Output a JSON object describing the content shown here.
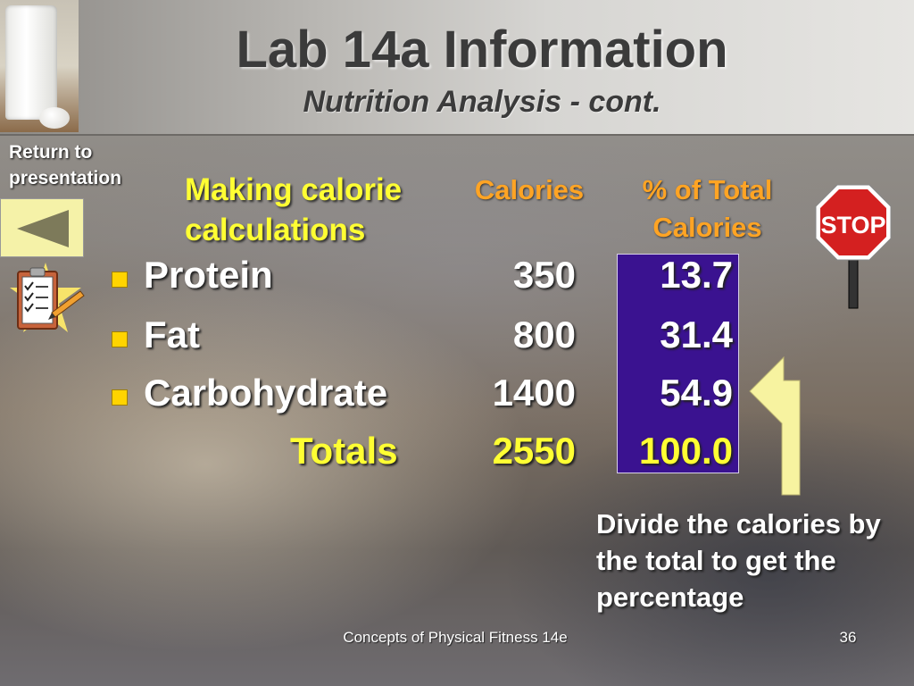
{
  "slide": {
    "title": "Lab 14a Information",
    "subtitle": "Nutrition Analysis - cont.",
    "return_label": "Return to presentation",
    "heading": "Making calorie calculations",
    "columns": {
      "calories": "Calories",
      "percent": "% of Total Calories"
    },
    "rows": [
      {
        "label": "Protein",
        "calories": "350",
        "percent": "13.7"
      },
      {
        "label": "Fat",
        "calories": "800",
        "percent": "31.4"
      },
      {
        "label": "Carbohydrate",
        "calories": "1400",
        "percent": "54.9"
      }
    ],
    "totals": {
      "label": "Totals",
      "calories": "2550",
      "percent": "100.0"
    },
    "stop_sign_text": "STOP",
    "note": "Divide the calories by the total to get the percentage",
    "footer": "Concepts of Physical Fitness 14e",
    "page_number": "36"
  },
  "colors": {
    "heading": "#ffff33",
    "column_header": "#ffa424",
    "percent_box": "#3a1290",
    "bullet": "#ffd400",
    "back_button": "#f5f2a8"
  },
  "icons": [
    "milk-glass-photo",
    "back-arrow-icon",
    "clipboard-icon",
    "stop-sign-icon",
    "up-arrow-icon"
  ]
}
